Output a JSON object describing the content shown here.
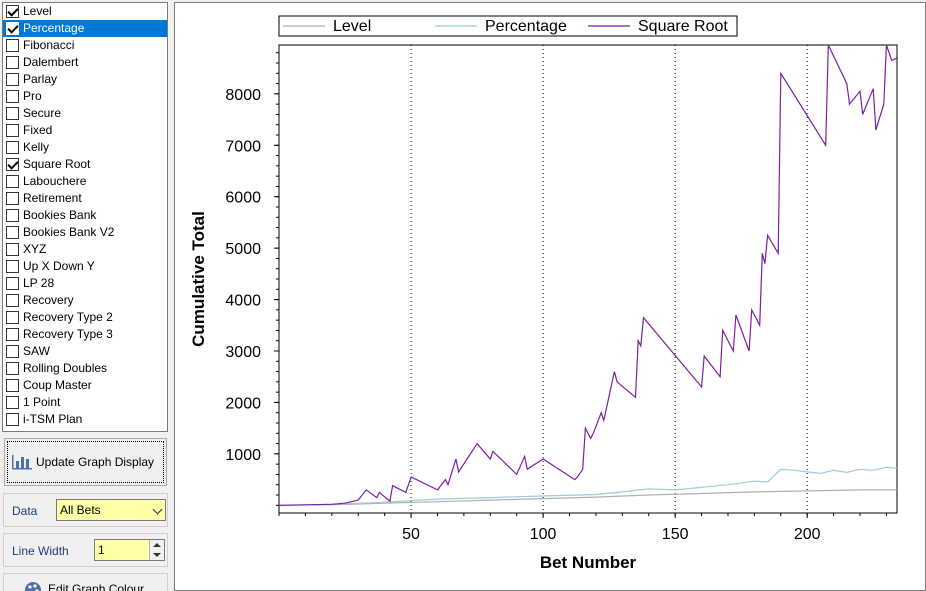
{
  "strategies": [
    {
      "label": "Level",
      "checked": true,
      "selected": false
    },
    {
      "label": "Percentage",
      "checked": true,
      "selected": true
    },
    {
      "label": "Fibonacci",
      "checked": false,
      "selected": false
    },
    {
      "label": "Dalembert",
      "checked": false,
      "selected": false
    },
    {
      "label": "Parlay",
      "checked": false,
      "selected": false
    },
    {
      "label": "Pro",
      "checked": false,
      "selected": false
    },
    {
      "label": "Secure",
      "checked": false,
      "selected": false
    },
    {
      "label": "Fixed",
      "checked": false,
      "selected": false
    },
    {
      "label": "Kelly",
      "checked": false,
      "selected": false
    },
    {
      "label": "Square Root",
      "checked": true,
      "selected": false
    },
    {
      "label": "Labouchere",
      "checked": false,
      "selected": false
    },
    {
      "label": "Retirement",
      "checked": false,
      "selected": false
    },
    {
      "label": "Bookies Bank",
      "checked": false,
      "selected": false
    },
    {
      "label": "Bookies Bank V2",
      "checked": false,
      "selected": false
    },
    {
      "label": "XYZ",
      "checked": false,
      "selected": false
    },
    {
      "label": "Up X Down Y",
      "checked": false,
      "selected": false
    },
    {
      "label": "LP 28",
      "checked": false,
      "selected": false
    },
    {
      "label": "Recovery",
      "checked": false,
      "selected": false
    },
    {
      "label": "Recovery Type 2",
      "checked": false,
      "selected": false
    },
    {
      "label": "Recovery Type 3",
      "checked": false,
      "selected": false
    },
    {
      "label": "SAW",
      "checked": false,
      "selected": false
    },
    {
      "label": "Rolling  Doubles",
      "checked": false,
      "selected": false
    },
    {
      "label": "Coup Master",
      "checked": false,
      "selected": false
    },
    {
      "label": "1 Point",
      "checked": false,
      "selected": false
    },
    {
      "label": "i-TSM Plan",
      "checked": false,
      "selected": false
    }
  ],
  "controls": {
    "update_label": "Update Graph Display",
    "update_icon": "bar-chart-icon",
    "data_label": "Data",
    "data_value": "All Bets",
    "line_width_label": "Line Width",
    "line_width_value": "1",
    "edit_colour_label": "Edit Graph Colour",
    "edit_colour_icon": "palette-icon"
  },
  "chart_data": {
    "type": "line",
    "xlabel": "Bet Number",
    "ylabel": "Cumulative Total",
    "xlim": [
      0,
      234
    ],
    "ylim": [
      -150,
      8950
    ],
    "x_ticks": [
      50,
      100,
      150,
      200
    ],
    "y_ticks": [
      1000,
      2000,
      3000,
      4000,
      5000,
      6000,
      7000,
      8000
    ],
    "grid": "vertical-dotted",
    "legend_position": "top",
    "series": [
      {
        "name": "Level",
        "color": "#b0b0b0",
        "x": [
          0,
          20,
          40,
          60,
          80,
          100,
          120,
          140,
          160,
          180,
          200,
          220,
          234
        ],
        "y": [
          0,
          10,
          40,
          70,
          100,
          130,
          160,
          200,
          230,
          260,
          280,
          300,
          300
        ]
      },
      {
        "name": "Percentage",
        "color": "#9fc9df",
        "x": [
          0,
          20,
          40,
          60,
          80,
          100,
          120,
          130,
          140,
          150,
          160,
          170,
          180,
          185,
          190,
          195,
          200,
          205,
          210,
          215,
          220,
          225,
          230,
          234
        ],
        "y": [
          0,
          20,
          60,
          120,
          150,
          180,
          210,
          260,
          320,
          300,
          350,
          400,
          470,
          450,
          700,
          680,
          650,
          620,
          680,
          640,
          700,
          680,
          740,
          720
        ]
      },
      {
        "name": "Square Root",
        "color": "#7a1fa2",
        "x": [
          0,
          10,
          20,
          25,
          30,
          33,
          37,
          38,
          42,
          43,
          48,
          50,
          60,
          63,
          64,
          67,
          68,
          75,
          80,
          81,
          90,
          93,
          94,
          100,
          112,
          113,
          115,
          116,
          118,
          119,
          122,
          123,
          127,
          128,
          135,
          136,
          137,
          138,
          160,
          161,
          167,
          168,
          172,
          173,
          178,
          179,
          182,
          183,
          184,
          185,
          189,
          190,
          207,
          208,
          215,
          216,
          220,
          221,
          225,
          226,
          229,
          230,
          232,
          234
        ],
        "y": [
          0,
          10,
          20,
          40,
          100,
          300,
          150,
          250,
          80,
          380,
          250,
          550,
          300,
          500,
          400,
          900,
          650,
          1200,
          900,
          1050,
          600,
          950,
          700,
          900,
          500,
          550,
          700,
          1500,
          1300,
          1400,
          1800,
          1650,
          2600,
          2400,
          2100,
          3200,
          3100,
          3650,
          2300,
          2900,
          2500,
          3400,
          3000,
          3700,
          3000,
          3800,
          3500,
          4900,
          4700,
          5250,
          4900,
          8400,
          7000,
          8950,
          8200,
          7800,
          8050,
          7600,
          8100,
          7300,
          7800,
          8950,
          8650,
          8700
        ]
      }
    ]
  }
}
